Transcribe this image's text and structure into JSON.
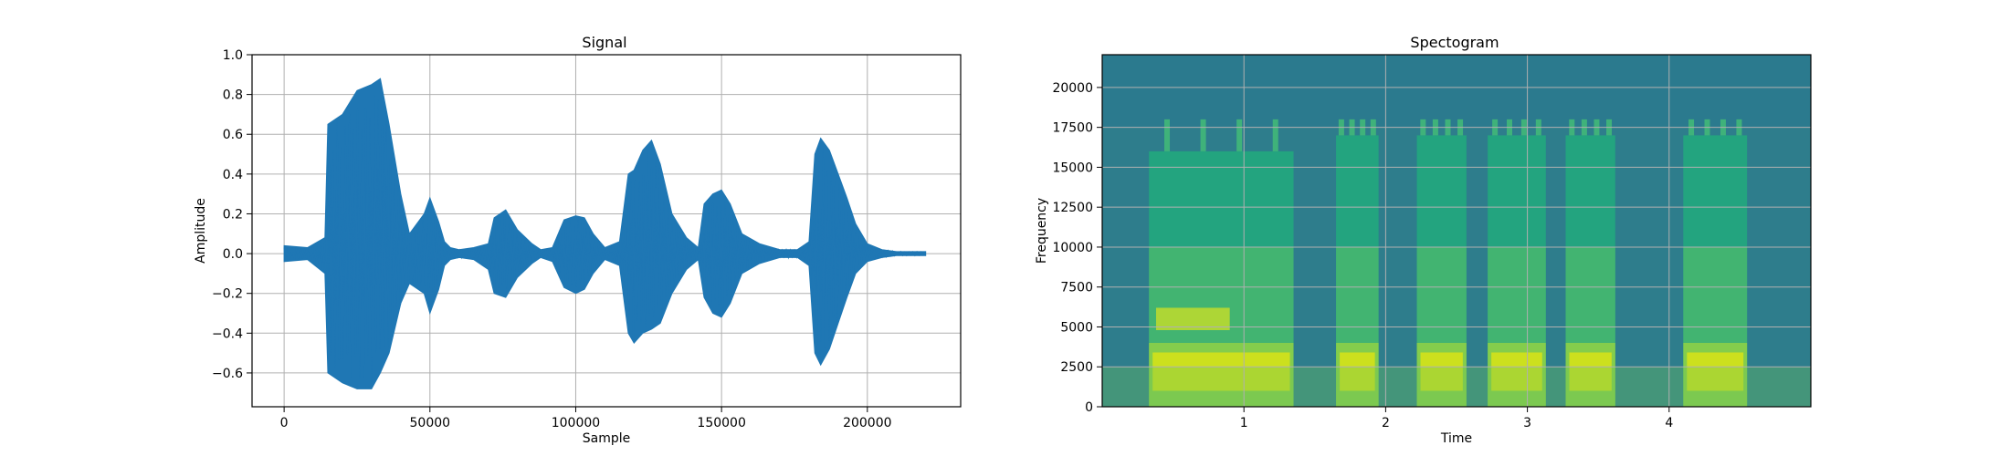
{
  "chart_data": [
    {
      "type": "line",
      "title": "Signal",
      "xlabel": "Sample",
      "ylabel": "Amplitude",
      "xlim": [
        -11000,
        232000
      ],
      "ylim": [
        -0.77,
        1.0
      ],
      "x_ticks": [
        0,
        50000,
        100000,
        150000,
        200000
      ],
      "x_tick_labels": [
        "0",
        "50000",
        "100000",
        "150000",
        "200000"
      ],
      "y_ticks": [
        -0.6,
        -0.4,
        -0.2,
        0.0,
        0.2,
        0.4,
        0.6,
        0.8,
        1.0
      ],
      "y_tick_labels": [
        "−0.6",
        "−0.4",
        "−0.2",
        "0.0",
        "0.2",
        "0.4",
        "0.6",
        "0.8",
        "1.0"
      ],
      "grid": true,
      "color": "#1f77b4",
      "series": [
        {
          "x": [
            0,
            8000,
            14000,
            15000,
            20000,
            25000,
            30000,
            33000,
            36000,
            40000,
            43000,
            48000,
            50000,
            53000,
            55000,
            57000,
            60000,
            65000,
            70000,
            72000,
            76000,
            80000,
            85000,
            88000,
            92000,
            96000,
            100000,
            103000,
            106000,
            110000,
            115000,
            118000,
            120000,
            123000,
            126000,
            129000,
            133000,
            138000,
            142000,
            144000,
            147000,
            150000,
            153000,
            157000,
            163000,
            170000,
            176000,
            180000,
            182000,
            184000,
            187000,
            190000,
            193000,
            196000,
            200000,
            205000,
            210000,
            220000
          ],
          "upper": [
            0.04,
            0.03,
            0.08,
            0.65,
            0.7,
            0.82,
            0.85,
            0.88,
            0.65,
            0.3,
            0.1,
            0.2,
            0.28,
            0.16,
            0.06,
            0.03,
            0.02,
            0.03,
            0.05,
            0.18,
            0.22,
            0.12,
            0.05,
            0.02,
            0.03,
            0.17,
            0.19,
            0.18,
            0.1,
            0.03,
            0.06,
            0.4,
            0.42,
            0.52,
            0.57,
            0.45,
            0.2,
            0.08,
            0.03,
            0.25,
            0.3,
            0.32,
            0.25,
            0.1,
            0.05,
            0.02,
            0.02,
            0.06,
            0.5,
            0.58,
            0.52,
            0.4,
            0.28,
            0.15,
            0.05,
            0.02,
            0.01,
            0.01
          ],
          "lower": [
            -0.04,
            -0.03,
            -0.1,
            -0.6,
            -0.65,
            -0.68,
            -0.68,
            -0.6,
            -0.5,
            -0.25,
            -0.15,
            -0.2,
            -0.3,
            -0.18,
            -0.06,
            -0.03,
            -0.02,
            -0.03,
            -0.08,
            -0.2,
            -0.22,
            -0.12,
            -0.05,
            -0.02,
            -0.04,
            -0.17,
            -0.2,
            -0.18,
            -0.1,
            -0.03,
            -0.06,
            -0.4,
            -0.45,
            -0.4,
            -0.38,
            -0.35,
            -0.2,
            -0.08,
            -0.03,
            -0.22,
            -0.3,
            -0.32,
            -0.25,
            -0.1,
            -0.05,
            -0.02,
            -0.02,
            -0.06,
            -0.5,
            -0.56,
            -0.48,
            -0.35,
            -0.22,
            -0.1,
            -0.04,
            -0.02,
            -0.01,
            -0.01
          ]
        }
      ]
    },
    {
      "type": "heatmap",
      "title": "Spectogram",
      "xlabel": "Time",
      "ylabel": "Frequency",
      "xlim": [
        0,
        5.0
      ],
      "ylim": [
        0,
        22050
      ],
      "x_ticks": [
        1,
        2,
        3,
        4
      ],
      "x_tick_labels": [
        "1",
        "2",
        "3",
        "4"
      ],
      "y_ticks": [
        0,
        2500,
        5000,
        7500,
        10000,
        12500,
        15000,
        17500,
        20000
      ],
      "y_tick_labels": [
        "0",
        "2500",
        "5000",
        "7500",
        "10000",
        "12500",
        "15000",
        "17500",
        "20000"
      ],
      "grid": true,
      "colormap": "viridis",
      "background_color": "#2e7d8c",
      "segments": [
        {
          "t0": 0.33,
          "t1": 1.35,
          "f_top": 16000
        },
        {
          "t0": 1.65,
          "t1": 1.95,
          "f_top": 17000
        },
        {
          "t0": 2.22,
          "t1": 2.57,
          "f_top": 17000
        },
        {
          "t0": 2.72,
          "t1": 3.13,
          "f_top": 17000
        },
        {
          "t0": 3.27,
          "t1": 3.62,
          "f_top": 17000
        },
        {
          "t0": 4.1,
          "t1": 4.55,
          "f_top": 17000
        }
      ]
    }
  ]
}
